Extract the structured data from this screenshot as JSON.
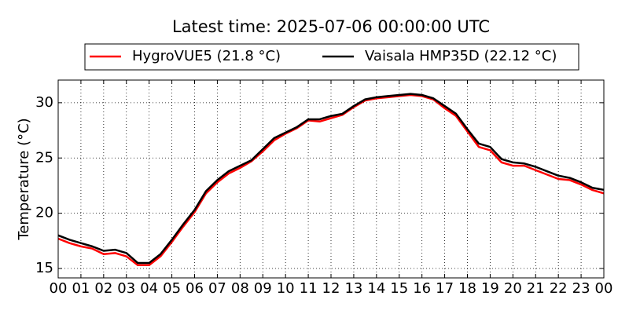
{
  "chart_data": {
    "type": "line",
    "title": "Latest time: 2025-07-06 00:00:00 UTC",
    "ylabel": "Temperature (°C)",
    "x": [
      0,
      0.5,
      1,
      1.5,
      2,
      2.5,
      3,
      3.5,
      4,
      4.5,
      5,
      5.5,
      6,
      6.5,
      7,
      7.5,
      8,
      8.5,
      9,
      9.5,
      10,
      10.5,
      11,
      11.5,
      12,
      12.5,
      13,
      13.5,
      14,
      14.5,
      15,
      15.5,
      16,
      16.5,
      17,
      17.5,
      18,
      18.5,
      19,
      19.5,
      20,
      20.5,
      21,
      21.5,
      22,
      22.5,
      23,
      23.5,
      24
    ],
    "series": [
      {
        "name": "HygroVUE5 (21.8 °C)",
        "color": "#ff0000",
        "values": [
          17.7,
          17.3,
          17.0,
          16.8,
          16.3,
          16.4,
          16.1,
          15.3,
          15.3,
          16.1,
          17.4,
          18.8,
          20.1,
          21.8,
          22.8,
          23.6,
          24.1,
          24.7,
          25.6,
          26.6,
          27.2,
          27.7,
          28.4,
          28.3,
          28.6,
          28.9,
          29.6,
          30.2,
          30.4,
          30.5,
          30.6,
          30.7,
          30.6,
          30.3,
          29.5,
          28.8,
          27.4,
          26.0,
          25.7,
          24.6,
          24.3,
          24.3,
          23.9,
          23.5,
          23.1,
          23.0,
          22.6,
          22.1,
          21.8
        ]
      },
      {
        "name": "Vaisala HMP35D (22.12 °C)",
        "color": "#000000",
        "values": [
          18.0,
          17.6,
          17.3,
          17.0,
          16.6,
          16.7,
          16.4,
          15.5,
          15.5,
          16.3,
          17.6,
          19.0,
          20.3,
          22.0,
          23.0,
          23.8,
          24.3,
          24.8,
          25.8,
          26.8,
          27.3,
          27.8,
          28.5,
          28.5,
          28.8,
          29.0,
          29.7,
          30.3,
          30.5,
          30.6,
          30.7,
          30.8,
          30.7,
          30.4,
          29.7,
          29.0,
          27.6,
          26.3,
          26.0,
          24.9,
          24.6,
          24.5,
          24.2,
          23.8,
          23.4,
          23.2,
          22.8,
          22.3,
          22.12
        ]
      }
    ],
    "xlim": [
      0,
      24
    ],
    "xticks": [
      {
        "value": 0,
        "label": "00"
      },
      {
        "value": 1,
        "label": "01"
      },
      {
        "value": 2,
        "label": "02"
      },
      {
        "value": 3,
        "label": "03"
      },
      {
        "value": 4,
        "label": "04"
      },
      {
        "value": 5,
        "label": "05"
      },
      {
        "value": 6,
        "label": "06"
      },
      {
        "value": 7,
        "label": "07"
      },
      {
        "value": 8,
        "label": "08"
      },
      {
        "value": 9,
        "label": "09"
      },
      {
        "value": 10,
        "label": "10"
      },
      {
        "value": 11,
        "label": "11"
      },
      {
        "value": 12,
        "label": "12"
      },
      {
        "value": 13,
        "label": "13"
      },
      {
        "value": 14,
        "label": "14"
      },
      {
        "value": 15,
        "label": "15"
      },
      {
        "value": 16,
        "label": "16"
      },
      {
        "value": 17,
        "label": "17"
      },
      {
        "value": 18,
        "label": "18"
      },
      {
        "value": 19,
        "label": "19"
      },
      {
        "value": 20,
        "label": "20"
      },
      {
        "value": 21,
        "label": "21"
      },
      {
        "value": 22,
        "label": "22"
      },
      {
        "value": 23,
        "label": "23"
      },
      {
        "value": 24,
        "label": "00"
      }
    ],
    "ylim": [
      14.15,
      32.05
    ],
    "yticks": [
      15,
      20,
      25,
      30
    ],
    "grid": true,
    "legend": "upper center"
  }
}
